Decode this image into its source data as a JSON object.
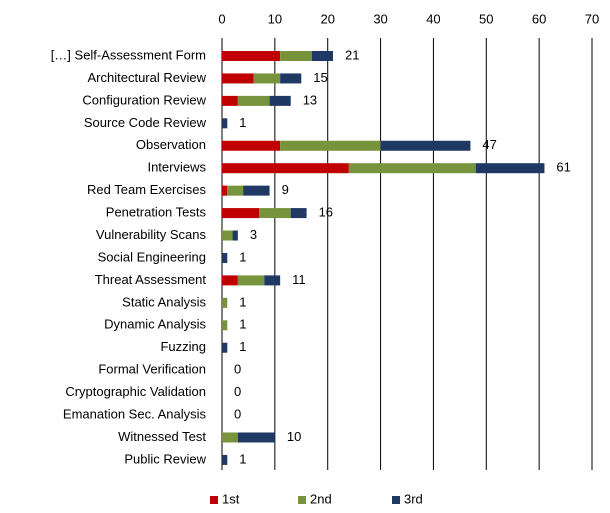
{
  "chart_data": {
    "type": "stacked-bar-horizontal",
    "categories": [
      "[…] Self-Assessment Form",
      "Architectural Review",
      "Configuration Review",
      "Source Code Review",
      "Observation",
      "Interviews",
      "Red Team Exercises",
      "Penetration Tests",
      "Vulnerability Scans",
      "Social Engineering",
      "Threat Assessment",
      "Static Analysis",
      "Dynamic Analysis",
      "Fuzzing",
      "Formal Verification",
      "Cryptographic Validation",
      "Emanation Sec. Analysis",
      "Witnessed Test",
      "Public Review"
    ],
    "series": [
      {
        "name": "1st",
        "color": "#c00000",
        "values": [
          11,
          6,
          3,
          0,
          11,
          24,
          1,
          7,
          0,
          0,
          3,
          0,
          0,
          0,
          0,
          0,
          0,
          0,
          0
        ]
      },
      {
        "name": "2nd",
        "color": "#77933c",
        "values": [
          6,
          5,
          6,
          0,
          19,
          24,
          3,
          6,
          2,
          0,
          5,
          1,
          1,
          0,
          0,
          0,
          0,
          3,
          0
        ]
      },
      {
        "name": "3rd",
        "color": "#1f3864",
        "values": [
          4,
          4,
          4,
          1,
          17,
          13,
          5,
          3,
          1,
          1,
          3,
          0,
          0,
          1,
          0,
          0,
          0,
          7,
          1
        ]
      }
    ],
    "totals": [
      21,
      15,
      13,
      1,
      47,
      61,
      9,
      16,
      3,
      1,
      11,
      1,
      1,
      1,
      0,
      0,
      0,
      10,
      1
    ],
    "xlim": [
      0,
      70
    ],
    "xticks": [
      0,
      10,
      20,
      30,
      40,
      50,
      60,
      70
    ],
    "grid": true,
    "legend": "bottom"
  }
}
